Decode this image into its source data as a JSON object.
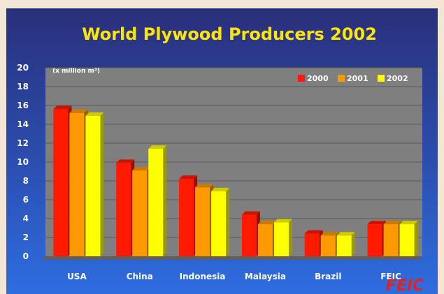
{
  "chart_data": {
    "type": "bar",
    "title": "World Plywood Producers 2002",
    "unit_label": "(x million m³)",
    "categories": [
      "USA",
      "China",
      "Indonesia",
      "Malaysia",
      "Brazil",
      "FEIC"
    ],
    "series": [
      {
        "name": "2000",
        "color": "#ff1a00",
        "values": [
          15.6,
          9.9,
          8.2,
          4.4,
          2.4,
          3.4
        ]
      },
      {
        "name": "2001",
        "color": "#ff9900",
        "values": [
          15.2,
          9.1,
          7.3,
          3.4,
          2.2,
          3.4
        ]
      },
      {
        "name": "2002",
        "color": "#ffff00",
        "values": [
          14.9,
          11.4,
          6.9,
          3.6,
          2.2,
          3.4
        ]
      }
    ],
    "ylim": [
      0,
      20
    ],
    "yticks": [
      0,
      2,
      4,
      6,
      8,
      10,
      12,
      14,
      16,
      18,
      20
    ],
    "grid": true,
    "legend_position": "top-right"
  },
  "logo_text": "FEIC",
  "colors": {
    "plot_background": "#7f7f7f",
    "gridline": "#5a5a5a",
    "title": "#ffe600",
    "logo": "#e8201b"
  }
}
